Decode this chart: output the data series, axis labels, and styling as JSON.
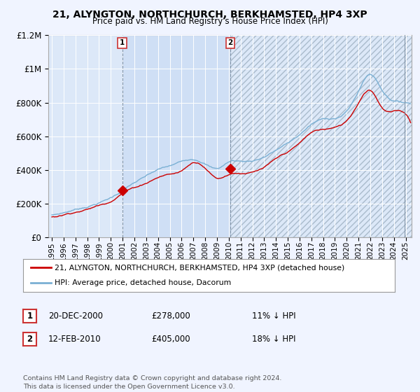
{
  "title": "21, ALYNGTON, NORTHCHURCH, BERKHAMSTED, HP4 3XP",
  "subtitle": "Price paid vs. HM Land Registry's House Price Index (HPI)",
  "background_color": "#f0f4ff",
  "plot_bg_color": "#dce8f8",
  "ylim": [
    0,
    1200000
  ],
  "yticks": [
    0,
    200000,
    400000,
    600000,
    800000,
    1000000,
    1200000
  ],
  "ytick_labels": [
    "£0",
    "£200K",
    "£400K",
    "£600K",
    "£800K",
    "£1M",
    "£1.2M"
  ],
  "legend_label_red": "21, ALYNGTON, NORTHCHURCH, BERKHAMSTED, HP4 3XP (detached house)",
  "legend_label_blue": "HPI: Average price, detached house, Dacorum",
  "annotation1_date": "20-DEC-2000",
  "annotation1_price": "£278,000",
  "annotation1_pct": "11% ↓ HPI",
  "annotation2_date": "12-FEB-2010",
  "annotation2_price": "£405,000",
  "annotation2_pct": "18% ↓ HPI",
  "footer": "Contains HM Land Registry data © Crown copyright and database right 2024.\nThis data is licensed under the Open Government Licence v3.0.",
  "red_color": "#cc0000",
  "blue_color": "#7ab0d4",
  "sale1_x": 2000.97,
  "sale1_y": 278000,
  "sale2_x": 2010.12,
  "sale2_y": 405000,
  "vline1_x": 2000.97,
  "vline2_x": 2010.12,
  "shade_color": "#ccddf5",
  "xmin": 1995.0,
  "xmax": 2025.5
}
